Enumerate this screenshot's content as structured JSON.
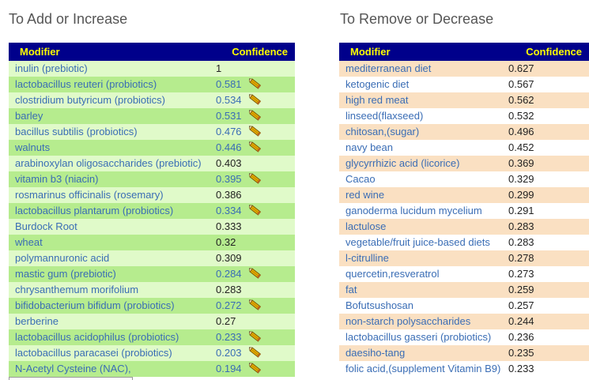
{
  "add_section": {
    "title": "To Add or Increase",
    "header_modifier": "Modifier",
    "header_confidence": "Confidence",
    "rows": [
      {
        "name": "inulin (prebiotic)",
        "value": "1",
        "edit": false
      },
      {
        "name": "lactobacillus reuteri (probiotics)",
        "value": "0.581",
        "edit": true
      },
      {
        "name": "clostridium butyricum (probiotics)",
        "value": "0.534",
        "edit": true
      },
      {
        "name": "barley",
        "value": "0.531",
        "edit": true
      },
      {
        "name": "bacillus subtilis (probiotics)",
        "value": "0.476",
        "edit": true
      },
      {
        "name": "walnuts",
        "value": "0.446",
        "edit": true
      },
      {
        "name": "arabinoxylan oligosaccharides (prebiotic)",
        "value": "0.403",
        "edit": false
      },
      {
        "name": "vitamin b3 (niacin)",
        "value": "0.395",
        "edit": true
      },
      {
        "name": "rosmarinus officinalis (rosemary)",
        "value": "0.386",
        "edit": false
      },
      {
        "name": "lactobacillus plantarum (probiotics)",
        "value": "0.334",
        "edit": true
      },
      {
        "name": "Burdock Root",
        "value": "0.333",
        "edit": false
      },
      {
        "name": "wheat",
        "value": "0.32",
        "edit": false
      },
      {
        "name": "polymannuronic acid",
        "value": "0.309",
        "edit": false
      },
      {
        "name": "mastic gum (prebiotic)",
        "value": "0.284",
        "edit": true
      },
      {
        "name": "chrysanthemum morifolium",
        "value": "0.283",
        "edit": false
      },
      {
        "name": "bifidobacterium bifidum (probiotics)",
        "value": "0.272",
        "edit": true
      },
      {
        "name": "berberine",
        "value": "0.27",
        "edit": false
      },
      {
        "name": "lactobacillus acidophilus (probiotics)",
        "value": "0.233",
        "edit": true
      },
      {
        "name": "lactobacillus paracasei (probiotics)",
        "value": "0.203",
        "edit": true
      },
      {
        "name": "N-Acetyl Cysteine (NAC),",
        "value": "0.194",
        "edit": true
      }
    ]
  },
  "remove_section": {
    "title": "To Remove or Decrease",
    "header_modifier": "Modifier",
    "header_confidence": "Confidence",
    "rows": [
      {
        "name": "mediterranean diet",
        "value": "0.627"
      },
      {
        "name": "ketogenic diet",
        "value": "0.567"
      },
      {
        "name": "high red meat",
        "value": "0.562"
      },
      {
        "name": "linseed(flaxseed)",
        "value": "0.532"
      },
      {
        "name": "chitosan,(sugar)",
        "value": "0.496"
      },
      {
        "name": "navy bean",
        "value": "0.452"
      },
      {
        "name": "glycyrrhizic acid (licorice)",
        "value": "0.369"
      },
      {
        "name": "Cacao",
        "value": "0.329"
      },
      {
        "name": "red wine",
        "value": "0.299"
      },
      {
        "name": "ganoderma lucidum mycelium",
        "value": "0.291"
      },
      {
        "name": "lactulose",
        "value": "0.283"
      },
      {
        "name": "vegetable/fruit juice-based diets",
        "value": "0.283"
      },
      {
        "name": "l-citrulline",
        "value": "0.278"
      },
      {
        "name": "quercetin,resveratrol",
        "value": "0.273"
      },
      {
        "name": "fat",
        "value": "0.259"
      },
      {
        "name": "Bofutsushosan",
        "value": "0.257"
      },
      {
        "name": "non-starch polysaccharides",
        "value": "0.244"
      },
      {
        "name": "lactobacillus gasseri (probiotics)",
        "value": "0.236"
      },
      {
        "name": "daesiho-tang",
        "value": "0.235"
      },
      {
        "name": "folic acid,(supplement Vitamin B9)",
        "value": "0.233"
      }
    ]
  },
  "colors": {
    "header_bg": "#00008b",
    "header_text": "#ffff00",
    "add_row_light": "#e0fac9",
    "add_row_dark": "#b6ec8e",
    "remove_row_tan": "#fae0c2",
    "remove_row_white": "#ffffff",
    "link": "#3a6db5"
  },
  "icons": {
    "edit": "pencil-icon"
  }
}
